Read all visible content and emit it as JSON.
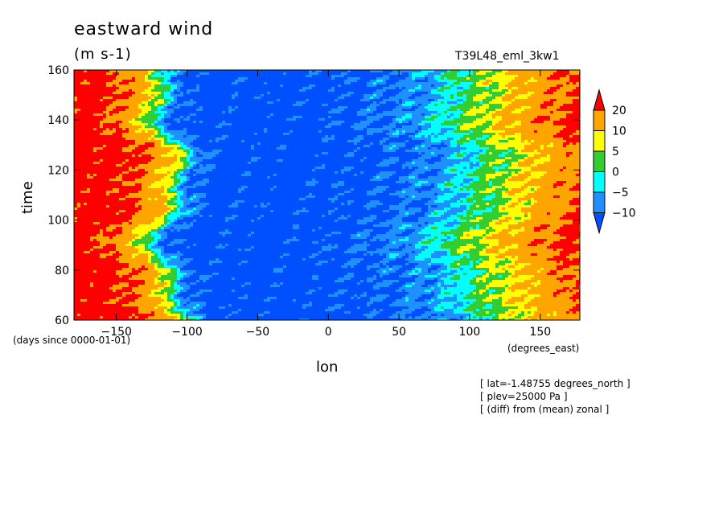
{
  "header": {
    "title": "eastward wind",
    "units": "(m s-1)",
    "run_id": "T39L48_eml_3kw1"
  },
  "axes": {
    "ylabel": "time",
    "xlabel": "lon",
    "y_units": "(days since 0000-01-01)",
    "x_units": "(degrees_east)"
  },
  "notes": [
    "[ lat=-1.48755 degrees_north ]",
    "[ plev=25000 Pa ]",
    "[ (diff) from (mean) zonal ]"
  ],
  "colors": {
    "red": "#ff0000",
    "orange": "#ffa500",
    "yellow": "#ffff00",
    "green": "#32cd32",
    "cyan": "#00ffff",
    "lightblue": "#1e90ff",
    "blue": "#0050ff"
  },
  "chart_data": {
    "type": "heatmap",
    "title": "eastward wind",
    "subtitle": "(m s-1)",
    "xlabel": "lon",
    "ylabel": "time",
    "xlim": [
      -180,
      178
    ],
    "ylim": [
      60,
      160
    ],
    "x_ticks": [
      -150,
      -100,
      -50,
      0,
      50,
      100,
      150
    ],
    "y_ticks": [
      60,
      80,
      100,
      120,
      140,
      160
    ],
    "colorbar": {
      "levels": [
        20,
        10,
        5,
        0,
        -5,
        -10
      ],
      "bins": [
        {
          "range": "> 20",
          "color": "#ff0000"
        },
        {
          "range": "10 to 20",
          "color": "#ffa500"
        },
        {
          "range": "5 to 10",
          "color": "#ffff00"
        },
        {
          "range": "0 to 5",
          "color": "#32cd32"
        },
        {
          "range": "-5 to 0",
          "color": "#00ffff"
        },
        {
          "range": "-10 to -5",
          "color": "#1e90ff"
        },
        {
          "range": "< -10",
          "color": "#0050ff"
        }
      ]
    },
    "approx_zonal_profile": {
      "lon": [
        -180,
        -160,
        -140,
        -125,
        -115,
        -105,
        -90,
        -60,
        -20,
        20,
        60,
        80,
        100,
        120,
        140,
        160,
        178
      ],
      "u_m_s": [
        25,
        24,
        20,
        12,
        3,
        -8,
        -13,
        -14,
        -14,
        -12,
        -9,
        -5,
        1,
        6,
        12,
        18,
        22
      ]
    },
    "grid": false
  }
}
